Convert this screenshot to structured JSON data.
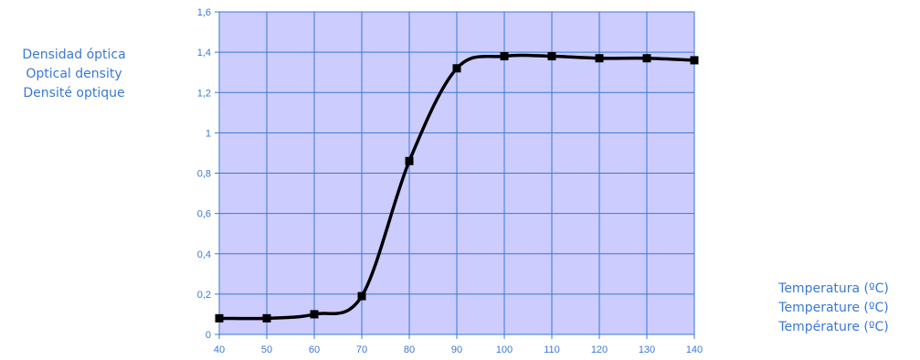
{
  "chart_data": {
    "type": "line",
    "title": "",
    "ylabel_lines": [
      "Densidad óptica",
      "Optical density",
      "Densité optique"
    ],
    "xlabel_lines": [
      "Temperatura (ºC)",
      "Temperature (ºC)",
      "Température (ºC)"
    ],
    "x": [
      40,
      50,
      60,
      70,
      80,
      90,
      100,
      110,
      120,
      130,
      140
    ],
    "series": [
      {
        "values": [
          0.08,
          0.08,
          0.1,
          0.19,
          0.86,
          1.32,
          1.38,
          1.38,
          1.37,
          1.37,
          1.36
        ]
      }
    ],
    "xlim": [
      40,
      140
    ],
    "ylim": [
      0,
      1.6
    ],
    "xticks": [
      40,
      50,
      60,
      70,
      80,
      90,
      100,
      110,
      120,
      130,
      140
    ],
    "yticks": [
      0,
      0.2,
      0.4,
      0.6,
      0.8,
      1,
      1.2,
      1.4,
      1.6
    ],
    "ytick_labels": [
      "0",
      "0,2",
      "0,4",
      "0,6",
      "0,8",
      "1",
      "1,2",
      "1,4",
      "1,6"
    ],
    "grid": true,
    "legend": "none",
    "colors": {
      "plot_background": "#ccccff",
      "grid": "#3a78d6",
      "line": "#000000",
      "text": "#3a78d6"
    }
  }
}
